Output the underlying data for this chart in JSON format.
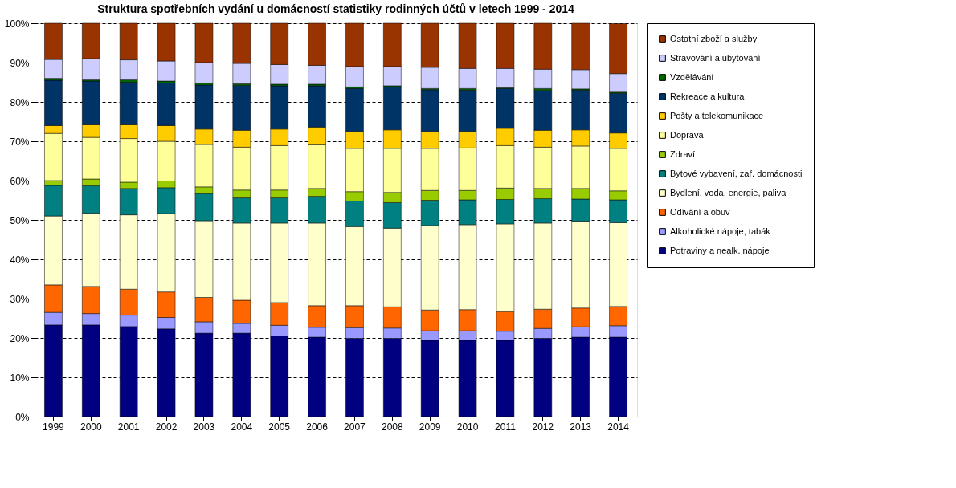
{
  "chart_data": {
    "type": "bar",
    "stacked": true,
    "title": "Struktura spotřebních vydání u domácností statistiky rodinných účtů v letech 1999 - 2014",
    "categories": [
      "1999",
      "2000",
      "2001",
      "2002",
      "2003",
      "2004",
      "2005",
      "2006",
      "2007",
      "2008",
      "2009",
      "2010",
      "2011",
      "2012",
      "2013",
      "2014"
    ],
    "ylim": [
      0,
      100
    ],
    "yticks": [
      {
        "value": 0,
        "label": "0%"
      },
      {
        "value": 10,
        "label": "10%"
      },
      {
        "value": 20,
        "label": "20%"
      },
      {
        "value": 30,
        "label": "30%"
      },
      {
        "value": 40,
        "label": "40%"
      },
      {
        "value": 50,
        "label": "50%"
      },
      {
        "value": 60,
        "label": "60%"
      },
      {
        "value": 70,
        "label": "70%"
      },
      {
        "value": 80,
        "label": "80%"
      },
      {
        "value": 90,
        "label": "90%"
      },
      {
        "value": 100,
        "label": "100%"
      }
    ],
    "grid": "y",
    "legend": "right",
    "series": [
      {
        "name": "Potraviny a nealk. nápoje",
        "color": "#000080",
        "values": [
          23.3,
          23.3,
          22.9,
          22.3,
          21.2,
          21.2,
          20.5,
          20.2,
          19.9,
          19.9,
          19.4,
          19.4,
          19.4,
          19.9,
          20.2,
          20.2
        ]
      },
      {
        "name": "Alkoholické nápoje, tabák",
        "color": "#9999ff",
        "values": [
          3.2,
          2.9,
          2.9,
          2.9,
          2.9,
          2.5,
          2.7,
          2.5,
          2.7,
          2.6,
          2.4,
          2.4,
          2.3,
          2.5,
          2.6,
          2.9
        ]
      },
      {
        "name": "Odívání a obuv",
        "color": "#ff6600",
        "values": [
          7.0,
          6.9,
          6.6,
          6.5,
          6.2,
          5.9,
          5.8,
          5.5,
          5.6,
          5.4,
          5.3,
          5.4,
          5.0,
          4.9,
          4.8,
          4.9
        ]
      },
      {
        "name": "Bydlení, voda, energie, paliva",
        "color": "#ffffcc",
        "values": [
          17.5,
          18.6,
          18.9,
          19.9,
          19.5,
          19.6,
          20.2,
          21.0,
          20.1,
          20.0,
          21.5,
          21.6,
          22.3,
          21.9,
          22.1,
          21.3
        ]
      },
      {
        "name": "Bytové vybavení, zař. domácnosti",
        "color": "#008080",
        "values": [
          7.8,
          7.0,
          6.7,
          6.6,
          6.9,
          6.4,
          6.4,
          6.8,
          6.5,
          6.5,
          6.4,
          6.3,
          6.2,
          6.2,
          5.6,
          5.8
        ]
      },
      {
        "name": "Zdraví",
        "color": "#99cc00",
        "values": [
          1.2,
          1.7,
          1.6,
          1.7,
          1.7,
          2.0,
          2.0,
          2.0,
          2.4,
          2.6,
          2.5,
          2.4,
          2.9,
          2.6,
          2.7,
          2.3
        ]
      },
      {
        "name": "Doprava",
        "color": "#ffff99",
        "values": [
          12.0,
          10.6,
          11.1,
          10.1,
          10.8,
          10.9,
          11.3,
          11.1,
          11.0,
          11.2,
          10.7,
          10.8,
          10.8,
          10.5,
          10.8,
          10.8
        ]
      },
      {
        "name": "Pošty a telekomunikace",
        "color": "#ffcc00",
        "values": [
          2.0,
          3.2,
          3.5,
          4.0,
          3.9,
          4.3,
          4.2,
          4.5,
          4.3,
          4.7,
          4.3,
          4.2,
          4.4,
          4.3,
          4.1,
          3.9
        ]
      },
      {
        "name": "Rekreace a kultura",
        "color": "#003366",
        "values": [
          11.5,
          11.1,
          10.8,
          10.8,
          11.2,
          11.4,
          11.0,
          10.5,
          10.9,
          10.9,
          10.6,
          10.5,
          10.1,
          10.1,
          10.1,
          10.1
        ]
      },
      {
        "name": "Vzdělávání",
        "color": "#006600",
        "values": [
          0.5,
          0.3,
          0.6,
          0.5,
          0.5,
          0.4,
          0.4,
          0.4,
          0.4,
          0.3,
          0.3,
          0.4,
          0.2,
          0.5,
          0.3,
          0.3
        ]
      },
      {
        "name": "Stravování a ubytování",
        "color": "#ccccff",
        "values": [
          4.8,
          5.4,
          5.1,
          5.1,
          5.2,
          5.2,
          5.0,
          4.8,
          5.2,
          4.9,
          5.4,
          5.1,
          4.9,
          4.9,
          4.9,
          4.7
        ]
      },
      {
        "name": "Ostatní zboží a služby",
        "color": "#993300",
        "values": [
          9.2,
          9.0,
          9.3,
          9.6,
          10.0,
          10.2,
          10.5,
          10.7,
          11.0,
          11.0,
          11.2,
          11.5,
          11.5,
          11.7,
          11.8,
          12.7
        ]
      }
    ]
  }
}
